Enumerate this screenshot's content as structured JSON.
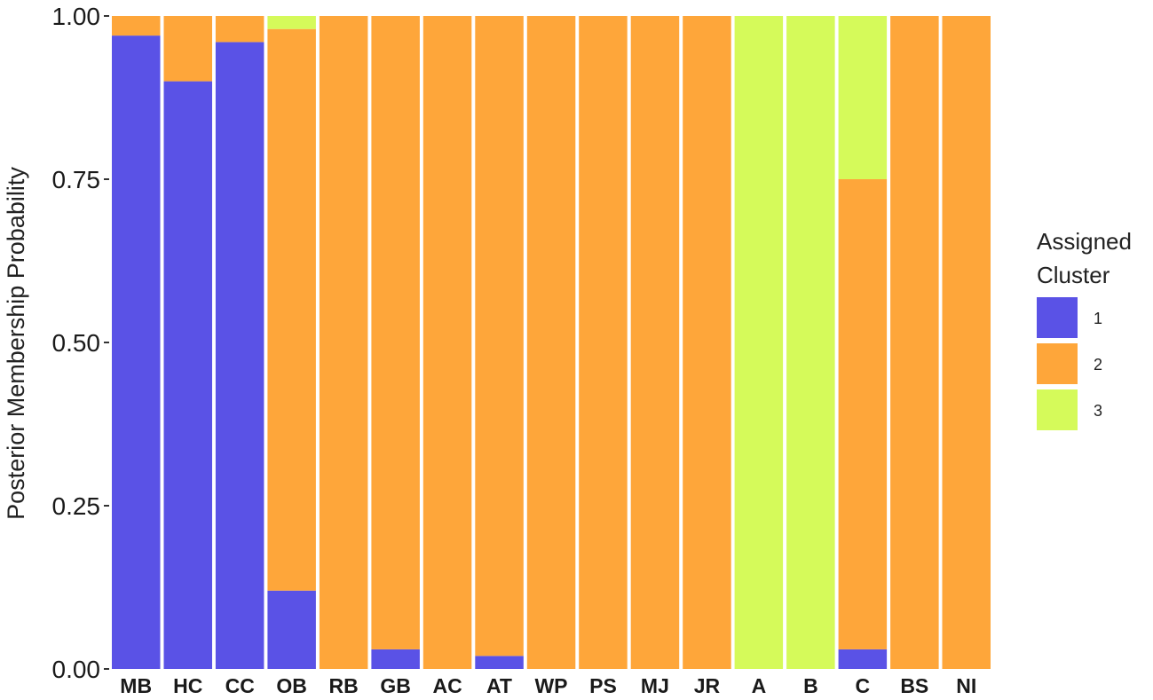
{
  "chart_data": {
    "type": "bar",
    "stacked": true,
    "title": "",
    "xlabel": "",
    "ylabel": "Posterior Membership Probability",
    "ylim": [
      0,
      1
    ],
    "yticks": [
      "0.00",
      "0.25",
      "0.50",
      "0.75",
      "1.00"
    ],
    "grid": false,
    "legend_position": "right",
    "legend_title": "Assigned Cluster",
    "clusters": [
      {
        "name": "1",
        "color": "#5a52e6"
      },
      {
        "name": "2",
        "color": "#fea63a"
      },
      {
        "name": "3",
        "color": "#d5fa5a"
      }
    ],
    "categories": [
      "MB",
      "HC",
      "CC",
      "OB",
      "RB",
      "GB",
      "AC",
      "AT",
      "WP",
      "PS",
      "MJ",
      "JR",
      "A",
      "B",
      "C",
      "BS",
      "NI"
    ],
    "series": [
      {
        "name": "1",
        "values": [
          0.97,
          0.9,
          0.96,
          0.12,
          0.0,
          0.03,
          0.0,
          0.02,
          0.0,
          0.0,
          0.0,
          0.0,
          0.0,
          0.0,
          0.03,
          0.0,
          0.0
        ]
      },
      {
        "name": "2",
        "values": [
          0.03,
          0.1,
          0.04,
          0.86,
          1.0,
          0.97,
          1.0,
          0.98,
          1.0,
          1.0,
          1.0,
          1.0,
          0.0,
          0.0,
          0.72,
          1.0,
          1.0
        ]
      },
      {
        "name": "3",
        "values": [
          0.0,
          0.0,
          0.0,
          0.02,
          0.0,
          0.0,
          0.0,
          0.0,
          0.0,
          0.0,
          0.0,
          0.0,
          1.0,
          1.0,
          0.25,
          0.0,
          0.0
        ]
      }
    ]
  }
}
